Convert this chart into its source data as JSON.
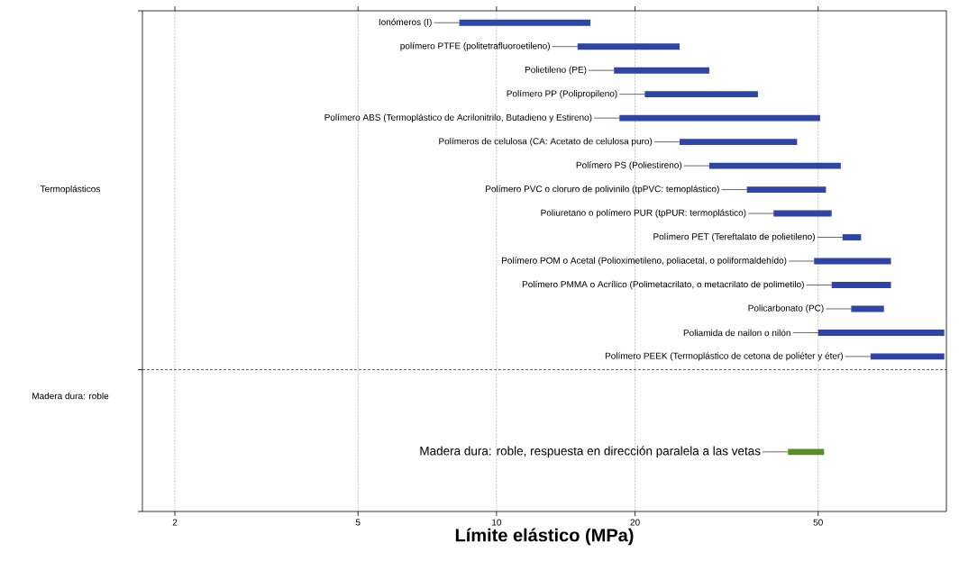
{
  "chart_data": {
    "type": "bar",
    "orientation": "horizontal",
    "log": "x",
    "grid": "x",
    "tick_labels": "x",
    "xlabel": "Límite elástico (MPa)",
    "categories": [
      "Ionómeros (I)",
      "polímero PTFE (politetrafluoroetileno)",
      "Polietileno (PE)",
      "Polímero PP (Polipropileno)",
      "Polímero ABS (Termoplástico de Acrilonitrilo, Butadieno y Estireno)",
      "Polímeros de celulosa (CA: Acetato de celulosa puro)",
      "Polímero PS (Poliestireno)",
      "Polímero PVC o cloruro de polivinilo (tpPVC: temoplástico)",
      "Poliuretano o polímero PUR (tpPUR: termoplástico)",
      "Polímero PET (Tereftalato de polietileno)",
      "Polímero POM o Acetal (Polioximetileno, poliacetal, o poliformaldehído)",
      "Polímero PMMA o Acrílico (Polimetacrilato, o metacrilato de polimetilo)",
      "Policarbonato (PC)",
      "Poliamida de nailon o nilón",
      "Polímero PEEK (Termoplástico de cetona de poliéter y éter)",
      null,
      null,
      null,
      "Madera dura: roble, respuesta en dirección paralela a las vetas",
      null,
      null
    ],
    "base": [
      8.3,
      15,
      18,
      21,
      18.5,
      25,
      29,
      35,
      40,
      56.5,
      49,
      53.5,
      59,
      50,
      65,
      null,
      null,
      null,
      43,
      null,
      null
    ],
    "values": [
      7.7,
      10,
      11,
      16,
      32,
      20,
      27,
      17,
      13.5,
      5.5,
      23,
      18.5,
      10.5,
      44,
      29,
      null,
      null,
      null,
      8.5,
      null,
      null
    ],
    "colors": [
      "#2e45a6",
      "#2e45a6",
      "#2e45a6",
      "#2e45a6",
      "#2e45a6",
      "#2e45a6",
      "#2e45a6",
      "#2e45a6",
      "#2e45a6",
      "#2e45a6",
      "#2e45a6",
      "#2e45a6",
      "#2e45a6",
      "#2e45a6",
      "#2e45a6",
      null,
      null,
      null,
      "#5b8c2a",
      null,
      null
    ],
    "xlim": [
      1.7,
      95
    ],
    "xticks": [
      2,
      5,
      10,
      20,
      50
    ],
    "annotations": [
      "Termoplásticos",
      "Madera dura: roble"
    ]
  }
}
